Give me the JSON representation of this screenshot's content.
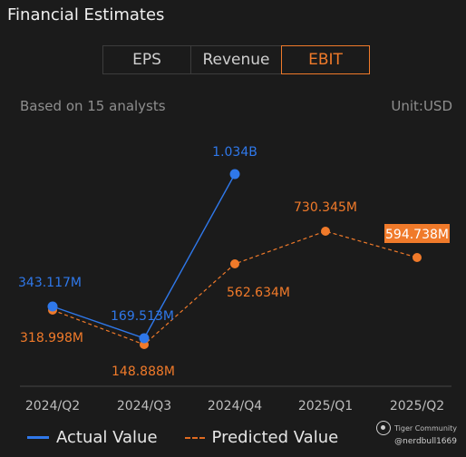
{
  "header": {
    "title": "Financial Estimates"
  },
  "tabs": [
    {
      "label": "EPS",
      "active": false
    },
    {
      "label": "Revenue",
      "active": false
    },
    {
      "label": "EBIT",
      "active": true
    }
  ],
  "info": {
    "analysts": "Based on 15 analysts",
    "unit": "Unit:USD"
  },
  "colors": {
    "actual": "#2f78ea",
    "predicted": "#f07a2a",
    "accent": "#f07a2a"
  },
  "chart_data": {
    "type": "line",
    "categories": [
      "2024/Q2",
      "2024/Q3",
      "2024/Q4",
      "2025/Q1",
      "2025/Q2"
    ],
    "series": [
      {
        "name": "Actual Value",
        "style": "solid",
        "values": [
          343.117,
          169.513,
          1034,
          null,
          null
        ],
        "labels": [
          "343.117M",
          "169.513M",
          "1.034B",
          null,
          null
        ]
      },
      {
        "name": "Predicted Value",
        "style": "dashed",
        "values": [
          318.998,
          148.888,
          562.634,
          730.345,
          594.738
        ],
        "labels": [
          "318.998M",
          "148.888M",
          "562.634M",
          "730.345M",
          "594.738M"
        ]
      }
    ],
    "unit": "USD (millions)",
    "highlighted_label": "594.738M"
  },
  "legend": {
    "actual": "Actual Value",
    "predicted": "Predicted Value"
  },
  "watermark": {
    "brand": "Tiger Community",
    "user": "@nerdbull1669"
  }
}
